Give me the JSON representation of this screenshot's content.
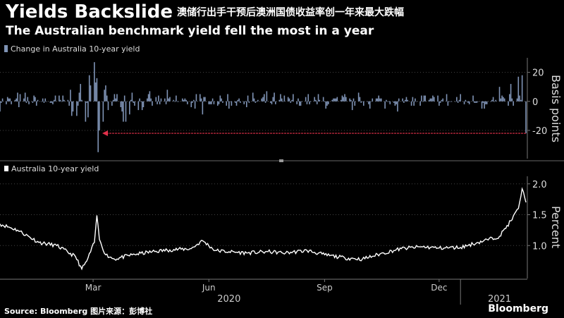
{
  "header": {
    "title": "Yields Backslide",
    "title_cn": "澳储行出手干预后澳洲国债收益率创一年来最大跌幅",
    "subtitle": "The Australian benchmark yield fell the most in a year"
  },
  "footer": {
    "source": "Source: Bloomberg 图片来源：彭博社",
    "brand": "Bloomberg"
  },
  "colors": {
    "bars": "#7f93b5",
    "line": "#ffffff",
    "arrow": "#e0304a",
    "background": "#000000",
    "grid": "#444444"
  },
  "chart_data": [
    {
      "type": "bar",
      "legend": "Change in Australia 10-year yield",
      "ylabel": "Basis points",
      "ylim": [
        -38,
        30
      ],
      "yticks": [
        "20",
        "0",
        "-20"
      ],
      "ytick_values": [
        20,
        0,
        -20
      ],
      "x_range": [
        "2020-01-01",
        "2021-02-22"
      ],
      "sampled_days": {
        "dates": [
          "2020-03-02",
          "2020-03-05",
          "2020-03-09",
          "2020-03-12",
          "2020-03-16",
          "2020-03-17",
          "2020-03-18",
          "2020-03-19",
          "2020-03-20",
          "2020-03-23",
          "2020-03-24",
          "2020-04-15",
          "2020-06-10",
          "2021-02-01",
          "2021-02-10",
          "2021-02-16",
          "2021-02-19",
          "2021-02-22"
        ],
        "values": [
          -10,
          12,
          -14,
          18,
          27,
          13,
          16,
          -35,
          -20,
          -14,
          8,
          6,
          -9,
          10,
          12,
          17,
          18,
          -22
        ]
      },
      "annotation": {
        "type": "arrow",
        "from_x": "2021-02-22",
        "to_x": "2020-03-20",
        "y": -22
      }
    },
    {
      "type": "line",
      "legend": "Australia 10-year yield",
      "ylabel": "Percent",
      "ylim": [
        0.5,
        2.1
      ],
      "yticks": [
        "2.0",
        "1.5",
        "1.0"
      ],
      "ytick_values": [
        2.0,
        1.5,
        1.0
      ],
      "x": [
        "2020-01-01",
        "2020-01-15",
        "2020-02-01",
        "2020-02-15",
        "2020-03-01",
        "2020-03-06",
        "2020-03-10",
        "2020-03-16",
        "2020-03-18",
        "2020-03-20",
        "2020-03-25",
        "2020-04-01",
        "2020-04-15",
        "2020-05-01",
        "2020-05-15",
        "2020-06-01",
        "2020-06-10",
        "2020-06-20",
        "2020-07-01",
        "2020-07-15",
        "2020-08-01",
        "2020-08-15",
        "2020-09-01",
        "2020-09-15",
        "2020-10-01",
        "2020-10-15",
        "2020-11-01",
        "2020-11-15",
        "2020-12-01",
        "2020-12-15",
        "2021-01-01",
        "2021-01-15",
        "2021-02-01",
        "2021-02-10",
        "2021-02-16",
        "2021-02-19",
        "2021-02-22"
      ],
      "y": [
        1.35,
        1.25,
        1.05,
        1.0,
        0.82,
        0.62,
        0.75,
        1.05,
        1.49,
        1.1,
        0.85,
        0.78,
        0.85,
        0.9,
        0.93,
        0.95,
        1.08,
        0.92,
        0.9,
        0.88,
        0.9,
        0.88,
        0.92,
        0.85,
        0.8,
        0.78,
        0.88,
        0.95,
        0.98,
        0.96,
        0.97,
        1.05,
        1.15,
        1.4,
        1.6,
        1.92,
        1.7
      ],
      "x_ticks": [
        "Mar",
        "Jun",
        "Sep",
        "Dec"
      ],
      "x_tick_dates": [
        "2020-03-15",
        "2020-06-15",
        "2020-09-15",
        "2020-12-15"
      ],
      "years": [
        "2020",
        "2021"
      ],
      "year_dates": [
        "2020-07-01",
        "2021-02-01"
      ]
    }
  ]
}
